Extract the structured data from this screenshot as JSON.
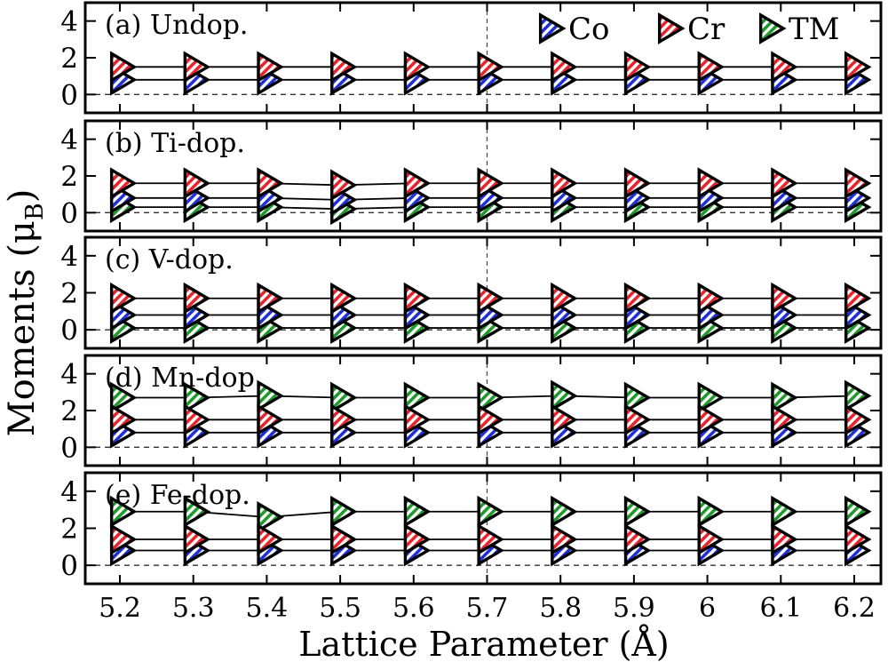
{
  "figure": {
    "ylabel": "Moments (μ",
    "ylabel_sub": "B",
    "ylabel_close": ")",
    "xlabel": "Lattice Parameter (Å)",
    "marker_colors": {
      "Co": "#1f2fd6",
      "Cr": "#e8232a",
      "TM": "#1f9a2a"
    }
  },
  "chart_data": [
    {
      "type": "line",
      "title": "(a) Undop.",
      "x": [
        5.2,
        5.3,
        5.4,
        5.5,
        5.6,
        5.7,
        5.8,
        5.9,
        6.0,
        6.1,
        6.2
      ],
      "xticks": [
        "5.2",
        "5.3",
        "5.4",
        "5.5",
        "5.6",
        "5.7",
        "5.8",
        "5.9",
        "6",
        "6.1",
        "6.2"
      ],
      "ylim": [
        -1,
        5
      ],
      "yticks": [
        0,
        2,
        4
      ],
      "reference_line_y": 0,
      "vertical_line_x": 5.7,
      "legend": [
        "Co",
        "Cr",
        "TM"
      ],
      "legend_position": "top-right",
      "series": [
        {
          "name": "Co",
          "values": [
            0.8,
            0.8,
            0.8,
            0.8,
            0.8,
            0.8,
            0.8,
            0.8,
            0.8,
            0.8,
            0.8
          ]
        },
        {
          "name": "Cr",
          "values": [
            1.5,
            1.5,
            1.5,
            1.5,
            1.5,
            1.5,
            1.5,
            1.5,
            1.5,
            1.5,
            1.5
          ]
        }
      ]
    },
    {
      "type": "line",
      "title": "(b) Ti-dop.",
      "x": [
        5.2,
        5.3,
        5.4,
        5.5,
        5.6,
        5.7,
        5.8,
        5.9,
        6.0,
        6.1,
        6.2
      ],
      "ylim": [
        -1,
        5
      ],
      "yticks": [
        0,
        2,
        4
      ],
      "reference_line_y": 0,
      "vertical_line_x": 5.7,
      "series": [
        {
          "name": "Co",
          "values": [
            0.8,
            0.8,
            0.8,
            0.7,
            0.8,
            0.8,
            0.8,
            0.8,
            0.8,
            0.8,
            0.8
          ]
        },
        {
          "name": "Cr",
          "values": [
            1.6,
            1.6,
            1.6,
            1.5,
            1.6,
            1.6,
            1.6,
            1.6,
            1.6,
            1.6,
            1.6
          ]
        },
        {
          "name": "TM",
          "values": [
            0.3,
            0.3,
            0.3,
            0.2,
            0.3,
            0.3,
            0.3,
            0.3,
            0.3,
            0.3,
            0.3
          ]
        }
      ]
    },
    {
      "type": "line",
      "title": "(c) V-dop.",
      "x": [
        5.2,
        5.3,
        5.4,
        5.5,
        5.6,
        5.7,
        5.8,
        5.9,
        6.0,
        6.1,
        6.2
      ],
      "ylim": [
        -1,
        5
      ],
      "yticks": [
        0,
        2,
        4
      ],
      "reference_line_y": 0,
      "vertical_line_x": 5.7,
      "series": [
        {
          "name": "Co",
          "values": [
            0.8,
            0.8,
            0.8,
            0.8,
            0.8,
            0.8,
            0.8,
            0.8,
            0.8,
            0.8,
            0.8
          ]
        },
        {
          "name": "Cr",
          "values": [
            1.7,
            1.7,
            1.7,
            1.7,
            1.7,
            1.7,
            1.7,
            1.7,
            1.7,
            1.7,
            1.7
          ]
        },
        {
          "name": "TM",
          "values": [
            0.1,
            0.1,
            0.1,
            0.1,
            0.1,
            0.1,
            0.1,
            0.1,
            0.1,
            0.1,
            0.1
          ]
        }
      ]
    },
    {
      "type": "line",
      "title": "(d) Mn-dop.",
      "x": [
        5.2,
        5.3,
        5.4,
        5.5,
        5.6,
        5.7,
        5.8,
        5.9,
        6.0,
        6.1,
        6.2
      ],
      "ylim": [
        -1,
        5
      ],
      "yticks": [
        0,
        2,
        4
      ],
      "reference_line_y": 0,
      "vertical_line_x": 5.7,
      "series": [
        {
          "name": "Co",
          "values": [
            0.8,
            0.8,
            0.8,
            0.8,
            0.8,
            0.8,
            0.8,
            0.8,
            0.8,
            0.8,
            0.8
          ]
        },
        {
          "name": "Cr",
          "values": [
            1.5,
            1.5,
            1.5,
            1.5,
            1.5,
            1.5,
            1.5,
            1.5,
            1.5,
            1.5,
            1.5
          ]
        },
        {
          "name": "TM",
          "values": [
            2.7,
            2.7,
            2.8,
            2.7,
            2.7,
            2.7,
            2.8,
            2.7,
            2.7,
            2.7,
            2.8
          ]
        }
      ]
    },
    {
      "type": "line",
      "title": "(e) Fe-dop.",
      "x": [
        5.2,
        5.3,
        5.4,
        5.5,
        5.6,
        5.7,
        5.8,
        5.9,
        6.0,
        6.1,
        6.2
      ],
      "ylim": [
        -1,
        5
      ],
      "yticks": [
        0,
        2,
        4
      ],
      "reference_line_y": 0,
      "vertical_line_x": 5.7,
      "series": [
        {
          "name": "Co",
          "values": [
            0.8,
            0.8,
            0.8,
            0.8,
            0.8,
            0.8,
            0.8,
            0.8,
            0.8,
            0.8,
            0.8
          ]
        },
        {
          "name": "Cr",
          "values": [
            1.4,
            1.4,
            1.4,
            1.4,
            1.4,
            1.4,
            1.4,
            1.4,
            1.4,
            1.4,
            1.4
          ]
        },
        {
          "name": "TM",
          "values": [
            2.9,
            2.9,
            2.6,
            2.9,
            2.9,
            2.9,
            2.9,
            2.9,
            2.9,
            2.9,
            2.9
          ]
        }
      ]
    }
  ]
}
